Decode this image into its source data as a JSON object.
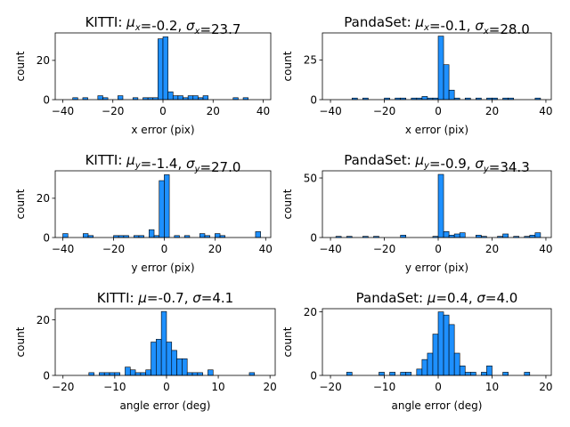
{
  "chart_data": [
    {
      "type": "bar",
      "title_prefix": "KITTI: ",
      "title_parts": [
        [
          "μ",
          "x"
        ],
        "=-0.2, ",
        [
          "σ",
          "x"
        ],
        "=23.7"
      ],
      "xlabel": "x error (pix)",
      "ylabel": "count",
      "xlim": [
        -43,
        43
      ],
      "ylim": [
        0,
        34
      ],
      "xticks": [
        -40,
        -20,
        0,
        20,
        40
      ],
      "yticks": [
        0,
        20
      ],
      "bin_width": 2,
      "bins": [
        {
          "x": -36,
          "count": 1
        },
        {
          "x": -32,
          "count": 1
        },
        {
          "x": -26,
          "count": 2
        },
        {
          "x": -24,
          "count": 1
        },
        {
          "x": -18,
          "count": 2
        },
        {
          "x": -12,
          "count": 1
        },
        {
          "x": -8,
          "count": 1
        },
        {
          "x": -6,
          "count": 1
        },
        {
          "x": -4,
          "count": 1
        },
        {
          "x": -2,
          "count": 31
        },
        {
          "x": 0,
          "count": 32
        },
        {
          "x": 2,
          "count": 4
        },
        {
          "x": 4,
          "count": 2
        },
        {
          "x": 6,
          "count": 2
        },
        {
          "x": 8,
          "count": 1
        },
        {
          "x": 10,
          "count": 2
        },
        {
          "x": 12,
          "count": 2
        },
        {
          "x": 14,
          "count": 1
        },
        {
          "x": 16,
          "count": 2
        },
        {
          "x": 28,
          "count": 1
        },
        {
          "x": 32,
          "count": 1
        }
      ]
    },
    {
      "type": "bar",
      "title_prefix": "PandaSet: ",
      "title_parts": [
        [
          "μ",
          "x"
        ],
        "=-0.1, ",
        [
          "σ",
          "x"
        ],
        "=28.0"
      ],
      "xlabel": "x error (pix)",
      "ylabel": "count",
      "xlim": [
        -43,
        42
      ],
      "ylim": [
        0,
        42
      ],
      "xticks": [
        -40,
        -20,
        0,
        20,
        40
      ],
      "yticks": [
        0,
        25
      ],
      "bin_width": 2,
      "bins": [
        {
          "x": -32,
          "count": 1
        },
        {
          "x": -28,
          "count": 1
        },
        {
          "x": -20,
          "count": 1
        },
        {
          "x": -16,
          "count": 1
        },
        {
          "x": -14,
          "count": 1
        },
        {
          "x": -10,
          "count": 1
        },
        {
          "x": -8,
          "count": 1
        },
        {
          "x": -6,
          "count": 2
        },
        {
          "x": -4,
          "count": 1
        },
        {
          "x": -2,
          "count": 1
        },
        {
          "x": 0,
          "count": 40
        },
        {
          "x": 2,
          "count": 22
        },
        {
          "x": 4,
          "count": 6
        },
        {
          "x": 6,
          "count": 1
        },
        {
          "x": 10,
          "count": 1
        },
        {
          "x": 14,
          "count": 1
        },
        {
          "x": 18,
          "count": 1
        },
        {
          "x": 20,
          "count": 1
        },
        {
          "x": 24,
          "count": 1
        },
        {
          "x": 26,
          "count": 1
        },
        {
          "x": 36,
          "count": 1
        }
      ]
    },
    {
      "type": "bar",
      "title_prefix": "KITTI: ",
      "title_parts": [
        [
          "μ",
          "y"
        ],
        "=-1.4, ",
        [
          "σ",
          "y"
        ],
        "=27.0"
      ],
      "xlabel": "y error (pix)",
      "ylabel": "count",
      "xlim": [
        -43,
        42
      ],
      "ylim": [
        0,
        34
      ],
      "xticks": [
        -40,
        -20,
        0,
        20,
        40
      ],
      "yticks": [
        0,
        20
      ],
      "bin_width": 2,
      "bins": [
        {
          "x": -40,
          "count": 2
        },
        {
          "x": -32,
          "count": 2
        },
        {
          "x": -30,
          "count": 1
        },
        {
          "x": -20,
          "count": 1
        },
        {
          "x": -18,
          "count": 1
        },
        {
          "x": -16,
          "count": 1
        },
        {
          "x": -12,
          "count": 1
        },
        {
          "x": -10,
          "count": 1
        },
        {
          "x": -6,
          "count": 4
        },
        {
          "x": -4,
          "count": 1
        },
        {
          "x": -2,
          "count": 29
        },
        {
          "x": 0,
          "count": 32
        },
        {
          "x": 4,
          "count": 1
        },
        {
          "x": 8,
          "count": 1
        },
        {
          "x": 14,
          "count": 2
        },
        {
          "x": 16,
          "count": 1
        },
        {
          "x": 20,
          "count": 2
        },
        {
          "x": 22,
          "count": 1
        },
        {
          "x": 36,
          "count": 3
        }
      ]
    },
    {
      "type": "bar",
      "title_prefix": "PandaSet: ",
      "title_parts": [
        [
          "μ",
          "y"
        ],
        "=-0.9, ",
        [
          "σ",
          "y"
        ],
        "=34.3"
      ],
      "xlabel": "y error (pix)",
      "ylabel": "count",
      "xlim": [
        -43,
        42
      ],
      "ylim": [
        0,
        56
      ],
      "xticks": [
        -40,
        -20,
        0,
        20,
        40
      ],
      "yticks": [
        0,
        50
      ],
      "bin_width": 2,
      "bins": [
        {
          "x": -38,
          "count": 1
        },
        {
          "x": -34,
          "count": 1
        },
        {
          "x": -28,
          "count": 1
        },
        {
          "x": -24,
          "count": 1
        },
        {
          "x": -14,
          "count": 2
        },
        {
          "x": -2,
          "count": 1
        },
        {
          "x": 0,
          "count": 53
        },
        {
          "x": 2,
          "count": 5
        },
        {
          "x": 4,
          "count": 2
        },
        {
          "x": 6,
          "count": 3
        },
        {
          "x": 8,
          "count": 4
        },
        {
          "x": 14,
          "count": 2
        },
        {
          "x": 16,
          "count": 1
        },
        {
          "x": 22,
          "count": 1
        },
        {
          "x": 24,
          "count": 3
        },
        {
          "x": 28,
          "count": 1
        },
        {
          "x": 32,
          "count": 1
        },
        {
          "x": 34,
          "count": 2
        },
        {
          "x": 36,
          "count": 4
        }
      ]
    },
    {
      "type": "bar",
      "title_prefix": "KITTI: ",
      "title_parts": [
        [
          "μ",
          ""
        ],
        "=-0.7, ",
        [
          "σ",
          ""
        ],
        "=4.1"
      ],
      "xlabel": "angle error (deg)",
      "ylabel": "count",
      "xlim": [
        -21.5,
        21
      ],
      "ylim": [
        0,
        24
      ],
      "xticks": [
        -20,
        -10,
        0,
        10,
        20
      ],
      "yticks": [
        0,
        20
      ],
      "bin_width": 1,
      "bins": [
        {
          "x": -15,
          "count": 1
        },
        {
          "x": -13,
          "count": 1
        },
        {
          "x": -12,
          "count": 1
        },
        {
          "x": -11,
          "count": 1
        },
        {
          "x": -10,
          "count": 1
        },
        {
          "x": -8,
          "count": 3
        },
        {
          "x": -7,
          "count": 2
        },
        {
          "x": -6,
          "count": 1
        },
        {
          "x": -5,
          "count": 1
        },
        {
          "x": -4,
          "count": 2
        },
        {
          "x": -3,
          "count": 12
        },
        {
          "x": -2,
          "count": 13
        },
        {
          "x": -1,
          "count": 23
        },
        {
          "x": 0,
          "count": 12
        },
        {
          "x": 1,
          "count": 9
        },
        {
          "x": 2,
          "count": 6
        },
        {
          "x": 3,
          "count": 6
        },
        {
          "x": 4,
          "count": 1
        },
        {
          "x": 5,
          "count": 1
        },
        {
          "x": 6,
          "count": 1
        },
        {
          "x": 8,
          "count": 2
        },
        {
          "x": 16,
          "count": 1
        }
      ]
    },
    {
      "type": "bar",
      "title_prefix": "PandaSet: ",
      "title_parts": [
        [
          "μ",
          ""
        ],
        "=0.4, ",
        [
          "σ",
          ""
        ],
        "=4.0"
      ],
      "xlabel": "angle error (deg)",
      "ylabel": "count",
      "xlim": [
        -21.5,
        21
      ],
      "ylim": [
        0,
        21
      ],
      "xticks": [
        -20,
        -10,
        0,
        10,
        20
      ],
      "yticks": [
        0,
        20
      ],
      "bin_width": 1,
      "bins": [
        {
          "x": -17,
          "count": 1
        },
        {
          "x": -11,
          "count": 1
        },
        {
          "x": -9,
          "count": 1
        },
        {
          "x": -7,
          "count": 1
        },
        {
          "x": -6,
          "count": 1
        },
        {
          "x": -4,
          "count": 2
        },
        {
          "x": -3,
          "count": 5
        },
        {
          "x": -2,
          "count": 7
        },
        {
          "x": -1,
          "count": 13
        },
        {
          "x": 0,
          "count": 20
        },
        {
          "x": 1,
          "count": 19
        },
        {
          "x": 2,
          "count": 16
        },
        {
          "x": 3,
          "count": 7
        },
        {
          "x": 4,
          "count": 3
        },
        {
          "x": 5,
          "count": 1
        },
        {
          "x": 6,
          "count": 1
        },
        {
          "x": 8,
          "count": 1
        },
        {
          "x": 9,
          "count": 3
        },
        {
          "x": 12,
          "count": 1
        },
        {
          "x": 16,
          "count": 1
        }
      ]
    }
  ],
  "colors": {
    "bar_fill": "#1e90ff",
    "bar_edge": "#000000",
    "axis": "#000000"
  }
}
